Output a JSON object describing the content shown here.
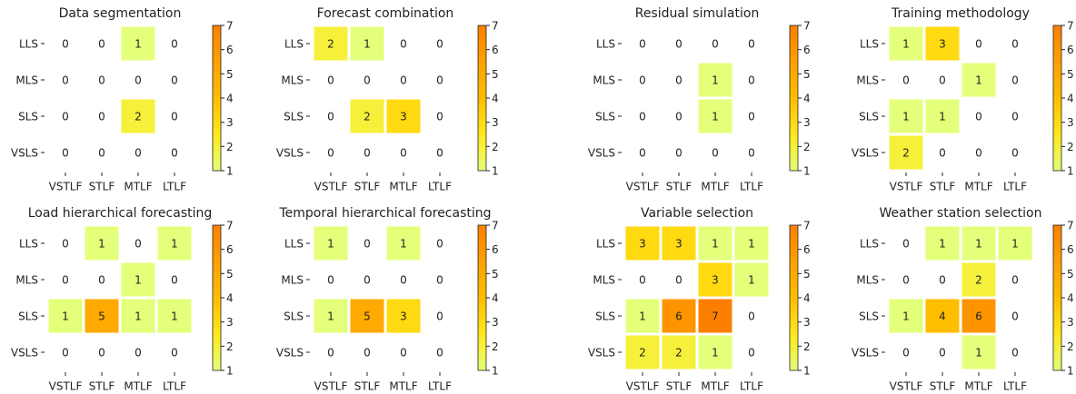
{
  "chart_data": [
    {
      "type": "heatmap",
      "title": "Data segmentation",
      "x_categories": [
        "VSTLF",
        "STLF",
        "MTLF",
        "LTLF"
      ],
      "y_categories": [
        "LLS",
        "MLS",
        "SLS",
        "VSLS"
      ],
      "values": [
        [
          0,
          0,
          1,
          0
        ],
        [
          0,
          0,
          0,
          0
        ],
        [
          0,
          0,
          2,
          0
        ],
        [
          0,
          0,
          0,
          0
        ]
      ],
      "clim": [
        1,
        7
      ],
      "cticks": [
        1,
        2,
        3,
        4,
        5,
        6,
        7
      ],
      "colormap": [
        "#e4ff7a",
        "#ffe81a",
        "#ffbd00",
        "#ffa000",
        "#fc7f00"
      ]
    },
    {
      "type": "heatmap",
      "title": "Forecast combination",
      "x_categories": [
        "VSTLF",
        "STLF",
        "MTLF",
        "LTLF"
      ],
      "y_categories": [
        "LLS",
        "MLS",
        "SLS",
        "VSLS"
      ],
      "values": [
        [
          2,
          1,
          0,
          0
        ],
        [
          0,
          0,
          0,
          0
        ],
        [
          0,
          2,
          3,
          0
        ],
        [
          0,
          0,
          0,
          0
        ]
      ],
      "clim": [
        1,
        7
      ],
      "cticks": [
        1,
        2,
        3,
        4,
        5,
        6,
        7
      ],
      "colormap": [
        "#e4ff7a",
        "#ffe81a",
        "#ffbd00",
        "#ffa000",
        "#fc7f00"
      ]
    },
    {
      "type": "heatmap",
      "title": "Residual simulation",
      "x_categories": [
        "VSTLF",
        "STLF",
        "MTLF",
        "LTLF"
      ],
      "y_categories": [
        "LLS",
        "MLS",
        "SLS",
        "VSLS"
      ],
      "values": [
        [
          0,
          0,
          0,
          0
        ],
        [
          0,
          0,
          1,
          0
        ],
        [
          0,
          0,
          1,
          0
        ],
        [
          0,
          0,
          0,
          0
        ]
      ],
      "clim": [
        1,
        7
      ],
      "cticks": [
        1,
        2,
        3,
        4,
        5,
        6,
        7
      ],
      "colormap": [
        "#e4ff7a",
        "#ffe81a",
        "#ffbd00",
        "#ffa000",
        "#fc7f00"
      ]
    },
    {
      "type": "heatmap",
      "title": "Training methodology",
      "x_categories": [
        "VSTLF",
        "STLF",
        "MTLF",
        "LTLF"
      ],
      "y_categories": [
        "LLS",
        "MLS",
        "SLS",
        "VSLS"
      ],
      "values": [
        [
          1,
          3,
          0,
          0
        ],
        [
          0,
          0,
          1,
          0
        ],
        [
          1,
          1,
          0,
          0
        ],
        [
          2,
          0,
          0,
          0
        ]
      ],
      "clim": [
        1,
        7
      ],
      "cticks": [
        1,
        2,
        3,
        4,
        5,
        6,
        7
      ],
      "colormap": [
        "#e4ff7a",
        "#ffe81a",
        "#ffbd00",
        "#ffa000",
        "#fc7f00"
      ]
    },
    {
      "type": "heatmap",
      "title": "Load hierarchical forecasting",
      "x_categories": [
        "VSTLF",
        "STLF",
        "MTLF",
        "LTLF"
      ],
      "y_categories": [
        "LLS",
        "MLS",
        "SLS",
        "VSLS"
      ],
      "values": [
        [
          0,
          1,
          0,
          1
        ],
        [
          0,
          0,
          1,
          0
        ],
        [
          1,
          5,
          1,
          1
        ],
        [
          0,
          0,
          0,
          0
        ]
      ],
      "clim": [
        1,
        7
      ],
      "cticks": [
        1,
        2,
        3,
        4,
        5,
        6,
        7
      ],
      "colormap": [
        "#e4ff7a",
        "#ffe81a",
        "#ffbd00",
        "#ffa000",
        "#fc7f00"
      ]
    },
    {
      "type": "heatmap",
      "title": "Temporal hierarchical forecasting",
      "x_categories": [
        "VSTLF",
        "STLF",
        "MTLF",
        "LTLF"
      ],
      "y_categories": [
        "LLS",
        "MLS",
        "SLS",
        "VSLS"
      ],
      "values": [
        [
          1,
          0,
          1,
          0
        ],
        [
          0,
          0,
          0,
          0
        ],
        [
          1,
          5,
          3,
          0
        ],
        [
          0,
          0,
          0,
          0
        ]
      ],
      "clim": [
        1,
        7
      ],
      "cticks": [
        1,
        2,
        3,
        4,
        5,
        6,
        7
      ],
      "colormap": [
        "#e4ff7a",
        "#ffe81a",
        "#ffbd00",
        "#ffa000",
        "#fc7f00"
      ]
    },
    {
      "type": "heatmap",
      "title": "Variable selection",
      "x_categories": [
        "VSTLF",
        "STLF",
        "MTLF",
        "LTLF"
      ],
      "y_categories": [
        "LLS",
        "MLS",
        "SLS",
        "VSLS"
      ],
      "values": [
        [
          3,
          3,
          1,
          1
        ],
        [
          0,
          0,
          3,
          1
        ],
        [
          1,
          6,
          7,
          0
        ],
        [
          2,
          2,
          1,
          0
        ]
      ],
      "clim": [
        1,
        7
      ],
      "cticks": [
        1,
        2,
        3,
        4,
        5,
        6,
        7
      ],
      "colormap": [
        "#e4ff7a",
        "#ffe81a",
        "#ffbd00",
        "#ffa000",
        "#fc7f00"
      ]
    },
    {
      "type": "heatmap",
      "title": "Weather station selection",
      "x_categories": [
        "VSTLF",
        "STLF",
        "MTLF",
        "LTLF"
      ],
      "y_categories": [
        "LLS",
        "MLS",
        "SLS",
        "VSLS"
      ],
      "values": [
        [
          0,
          1,
          1,
          1
        ],
        [
          0,
          0,
          2,
          0
        ],
        [
          1,
          4,
          6,
          0
        ],
        [
          0,
          0,
          1,
          0
        ]
      ],
      "clim": [
        1,
        7
      ],
      "cticks": [
        1,
        2,
        3,
        4,
        5,
        6,
        7
      ],
      "colormap": [
        "#e4ff7a",
        "#ffe81a",
        "#ffbd00",
        "#ffa000",
        "#fc7f00"
      ]
    }
  ]
}
